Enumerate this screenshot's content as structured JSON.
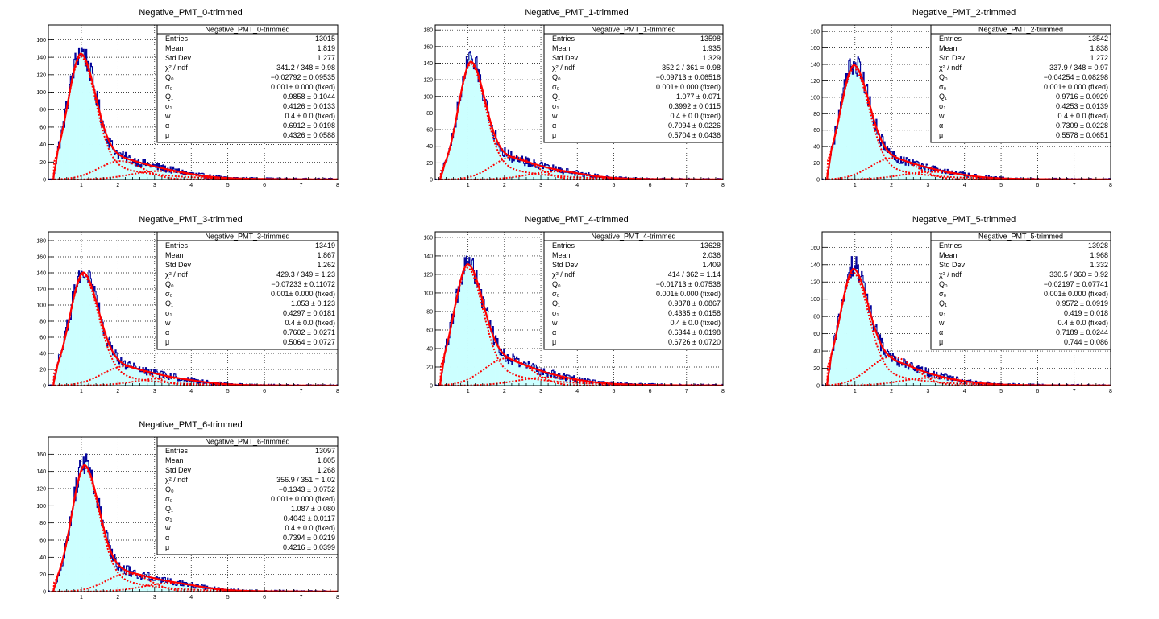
{
  "page": {
    "title": ""
  },
  "style": {
    "fill_color": "#ccffff",
    "histogram_line_color": "#000099",
    "fit_color": "#ff0000",
    "frame_color": "#000000",
    "grid": true,
    "stats_box_placement": "top-right"
  },
  "chart_data": [
    {
      "type": "bar",
      "title": "Negative_PMT_0-trimmed",
      "x_ticks": [
        "1",
        "2",
        "3",
        "4",
        "5",
        "6",
        "7",
        "8"
      ],
      "y_ticks": [
        "0",
        "20",
        "40",
        "60",
        "80",
        "100",
        "120",
        "140",
        "160"
      ],
      "xlim": [
        0.1,
        8.0
      ],
      "ylim": [
        0,
        177
      ],
      "peak_value": 152,
      "stats": {
        "name": "Negative_PMT_0-trimmed",
        "rows": [
          [
            "Entries",
            "13015"
          ],
          [
            "Mean",
            "1.819"
          ],
          [
            "Std Dev",
            "1.277"
          ],
          [
            "χ² / ndf",
            "341.2 / 348 = 0.98"
          ],
          [
            "Q₀",
            "−0.02792 ± 0.09535"
          ],
          [
            "σ₀",
            "0.001± 0.000  (fixed)"
          ],
          [
            "Q₁",
            "0.9858 ± 0.1044"
          ],
          [
            "σ₁",
            "0.4126 ± 0.0133"
          ],
          [
            "w",
            "0.4 ± 0.0  (fixed)"
          ],
          [
            "α",
            "0.6912 ± 0.0198"
          ],
          [
            "μ",
            "0.4326 ± 0.0588"
          ]
        ]
      },
      "fit": {
        "Q0": -0.02792,
        "Q1": 0.9858,
        "sigma1": 0.4126,
        "w": 0.4,
        "alpha": 0.6912,
        "mu": 0.4326
      }
    },
    {
      "type": "bar",
      "title": "Negative_PMT_1-trimmed",
      "x_ticks": [
        "1",
        "2",
        "3",
        "4",
        "5",
        "6",
        "7",
        "8"
      ],
      "y_ticks": [
        "0",
        "20",
        "40",
        "60",
        "80",
        "100",
        "120",
        "140",
        "160",
        "180"
      ],
      "xlim": [
        0.1,
        8.0
      ],
      "ylim": [
        0,
        186
      ],
      "peak_value": 150,
      "stats": {
        "name": "Negative_PMT_1-trimmed",
        "rows": [
          [
            "Entries",
            "13598"
          ],
          [
            "Mean",
            "1.935"
          ],
          [
            "Std Dev",
            "1.329"
          ],
          [
            "χ² / ndf",
            "352.2 / 361 = 0.98"
          ],
          [
            "Q₀",
            "−0.09713 ± 0.06518"
          ],
          [
            "σ₀",
            "0.001± 0.000  (fixed)"
          ],
          [
            "Q₁",
            "1.077 ± 0.071"
          ],
          [
            "σ₁",
            "0.3992 ± 0.0115"
          ],
          [
            "w",
            "0.4 ± 0.0  (fixed)"
          ],
          [
            "α",
            "0.7094 ± 0.0226"
          ],
          [
            "μ",
            "0.5704 ± 0.0436"
          ]
        ]
      },
      "fit": {
        "Q0": -0.09713,
        "Q1": 1.077,
        "sigma1": 0.3992,
        "w": 0.4,
        "alpha": 0.7094,
        "mu": 0.5704
      }
    },
    {
      "type": "bar",
      "title": "Negative_PMT_2-trimmed",
      "x_ticks": [
        "1",
        "2",
        "3",
        "4",
        "5",
        "6",
        "7",
        "8"
      ],
      "y_ticks": [
        "0",
        "20",
        "40",
        "60",
        "80",
        "100",
        "120",
        "140",
        "160",
        "180"
      ],
      "xlim": [
        0.1,
        8.0
      ],
      "ylim": [
        0,
        188
      ],
      "peak_value": 146,
      "stats": {
        "name": "Negative_PMT_2-trimmed",
        "rows": [
          [
            "Entries",
            "13542"
          ],
          [
            "Mean",
            "1.838"
          ],
          [
            "Std Dev",
            "1.272"
          ],
          [
            "χ² / ndf",
            "337.9 / 348 = 0.97"
          ],
          [
            "Q₀",
            "−0.04254 ± 0.08298"
          ],
          [
            "σ₀",
            "0.001± 0.000  (fixed)"
          ],
          [
            "Q₁",
            "0.9716 ± 0.0929"
          ],
          [
            "σ₁",
            "0.4253 ± 0.0139"
          ],
          [
            "w",
            "0.4 ± 0.0  (fixed)"
          ],
          [
            "α",
            "0.7309 ± 0.0228"
          ],
          [
            "μ",
            "0.5578 ± 0.0651"
          ]
        ]
      },
      "fit": {
        "Q0": -0.04254,
        "Q1": 0.9716,
        "sigma1": 0.4253,
        "w": 0.4,
        "alpha": 0.7309,
        "mu": 0.5578
      }
    },
    {
      "type": "bar",
      "title": "Negative_PMT_3-trimmed",
      "x_ticks": [
        "1",
        "2",
        "3",
        "4",
        "5",
        "6",
        "7",
        "8"
      ],
      "y_ticks": [
        "0",
        "20",
        "40",
        "60",
        "80",
        "100",
        "120",
        "140",
        "160",
        "180"
      ],
      "xlim": [
        0.1,
        8.0
      ],
      "ylim": [
        0,
        191
      ],
      "peak_value": 148,
      "stats": {
        "name": "Negative_PMT_3-trimmed",
        "rows": [
          [
            "Entries",
            "13419"
          ],
          [
            "Mean",
            "1.867"
          ],
          [
            "Std Dev",
            "1.262"
          ],
          [
            "χ² / ndf",
            "429.3 / 349 = 1.23"
          ],
          [
            "Q₀",
            "−0.07233 ± 0.11072"
          ],
          [
            "σ₀",
            "0.001± 0.000  (fixed)"
          ],
          [
            "Q₁",
            "1.053 ± 0.123"
          ],
          [
            "σ₁",
            "0.4297 ± 0.0181"
          ],
          [
            "w",
            "0.4 ± 0.0  (fixed)"
          ],
          [
            "α",
            "0.7602 ± 0.0271"
          ],
          [
            "μ",
            "0.5064 ± 0.0727"
          ]
        ]
      },
      "fit": {
        "Q0": -0.07233,
        "Q1": 1.053,
        "sigma1": 0.4297,
        "w": 0.4,
        "alpha": 0.7602,
        "mu": 0.5064
      }
    },
    {
      "type": "bar",
      "title": "Negative_PMT_4-trimmed",
      "x_ticks": [
        "1",
        "2",
        "3",
        "4",
        "5",
        "6",
        "7",
        "8"
      ],
      "y_ticks": [
        "0",
        "20",
        "40",
        "60",
        "80",
        "100",
        "120",
        "140",
        "160"
      ],
      "xlim": [
        0.1,
        8.0
      ],
      "ylim": [
        0,
        166
      ],
      "peak_value": 137,
      "stats": {
        "name": "Negative_PMT_4-trimmed",
        "rows": [
          [
            "Entries",
            "13628"
          ],
          [
            "Mean",
            "2.036"
          ],
          [
            "Std Dev",
            "1.409"
          ],
          [
            "χ² / ndf",
            "414 / 362 = 1.14"
          ],
          [
            "Q₀",
            "−0.01713 ± 0.07538"
          ],
          [
            "σ₀",
            "0.001± 0.000  (fixed)"
          ],
          [
            "Q₁",
            "0.9878 ± 0.0867"
          ],
          [
            "σ₁",
            "0.4335 ± 0.0158"
          ],
          [
            "w",
            "0.4 ± 0.0  (fixed)"
          ],
          [
            "α",
            "0.6344 ± 0.0198"
          ],
          [
            "μ",
            "0.6726 ± 0.0720"
          ]
        ]
      },
      "fit": {
        "Q0": -0.01713,
        "Q1": 0.9878,
        "sigma1": 0.4335,
        "w": 0.4,
        "alpha": 0.6344,
        "mu": 0.6726
      }
    },
    {
      "type": "bar",
      "title": "Negative_PMT_5-trimmed",
      "x_ticks": [
        "1",
        "2",
        "3",
        "4",
        "5",
        "6",
        "7",
        "8"
      ],
      "y_ticks": [
        "0",
        "20",
        "40",
        "60",
        "80",
        "100",
        "120",
        "140",
        "160"
      ],
      "xlim": [
        0.1,
        8.0
      ],
      "ylim": [
        0,
        178
      ],
      "peak_value": 141,
      "stats": {
        "name": "Negative_PMT_5-trimmed",
        "rows": [
          [
            "Entries",
            "13928"
          ],
          [
            "Mean",
            "1.968"
          ],
          [
            "Std Dev",
            "1.332"
          ],
          [
            "χ² / ndf",
            "330.5 / 360 = 0.92"
          ],
          [
            "Q₀",
            "−0.02197 ± 0.07741"
          ],
          [
            "σ₀",
            "0.001± 0.000  (fixed)"
          ],
          [
            "Q₁",
            "0.9572 ± 0.0919"
          ],
          [
            "σ₁",
            "0.419 ± 0.018"
          ],
          [
            "w",
            "0.4 ± 0.0  (fixed)"
          ],
          [
            "α",
            "0.7189 ± 0.0244"
          ],
          [
            "μ",
            "0.744 ± 0.086"
          ]
        ]
      },
      "fit": {
        "Q0": -0.02197,
        "Q1": 0.9572,
        "sigma1": 0.419,
        "w": 0.4,
        "alpha": 0.7189,
        "mu": 0.744
      }
    },
    {
      "type": "bar",
      "title": "Negative_PMT_6-trimmed",
      "x_ticks": [
        "1",
        "2",
        "3",
        "4",
        "5",
        "6",
        "7",
        "8"
      ],
      "y_ticks": [
        "0",
        "20",
        "40",
        "60",
        "80",
        "100",
        "120",
        "140",
        "160"
      ],
      "xlim": [
        0.1,
        8.0
      ],
      "ylim": [
        0,
        180
      ],
      "peak_value": 156,
      "stats": {
        "name": "Negative_PMT_6-trimmed",
        "rows": [
          [
            "Entries",
            "13097"
          ],
          [
            "Mean",
            "1.805"
          ],
          [
            "Std Dev",
            "1.268"
          ],
          [
            "χ² / ndf",
            "356.9 / 351 = 1.02"
          ],
          [
            "Q₀",
            "−0.1343 ± 0.0752"
          ],
          [
            "σ₀",
            "0.001± 0.000  (fixed)"
          ],
          [
            "Q₁",
            "1.087 ± 0.080"
          ],
          [
            "σ₁",
            "0.4043 ± 0.0117"
          ],
          [
            "w",
            "0.4 ± 0.0  (fixed)"
          ],
          [
            "α",
            "0.7394 ± 0.0219"
          ],
          [
            "μ",
            "0.4216 ± 0.0399"
          ]
        ]
      },
      "fit": {
        "Q0": -0.1343,
        "Q1": 1.087,
        "sigma1": 0.4043,
        "w": 0.4,
        "alpha": 0.7394,
        "mu": 0.4216
      }
    }
  ]
}
